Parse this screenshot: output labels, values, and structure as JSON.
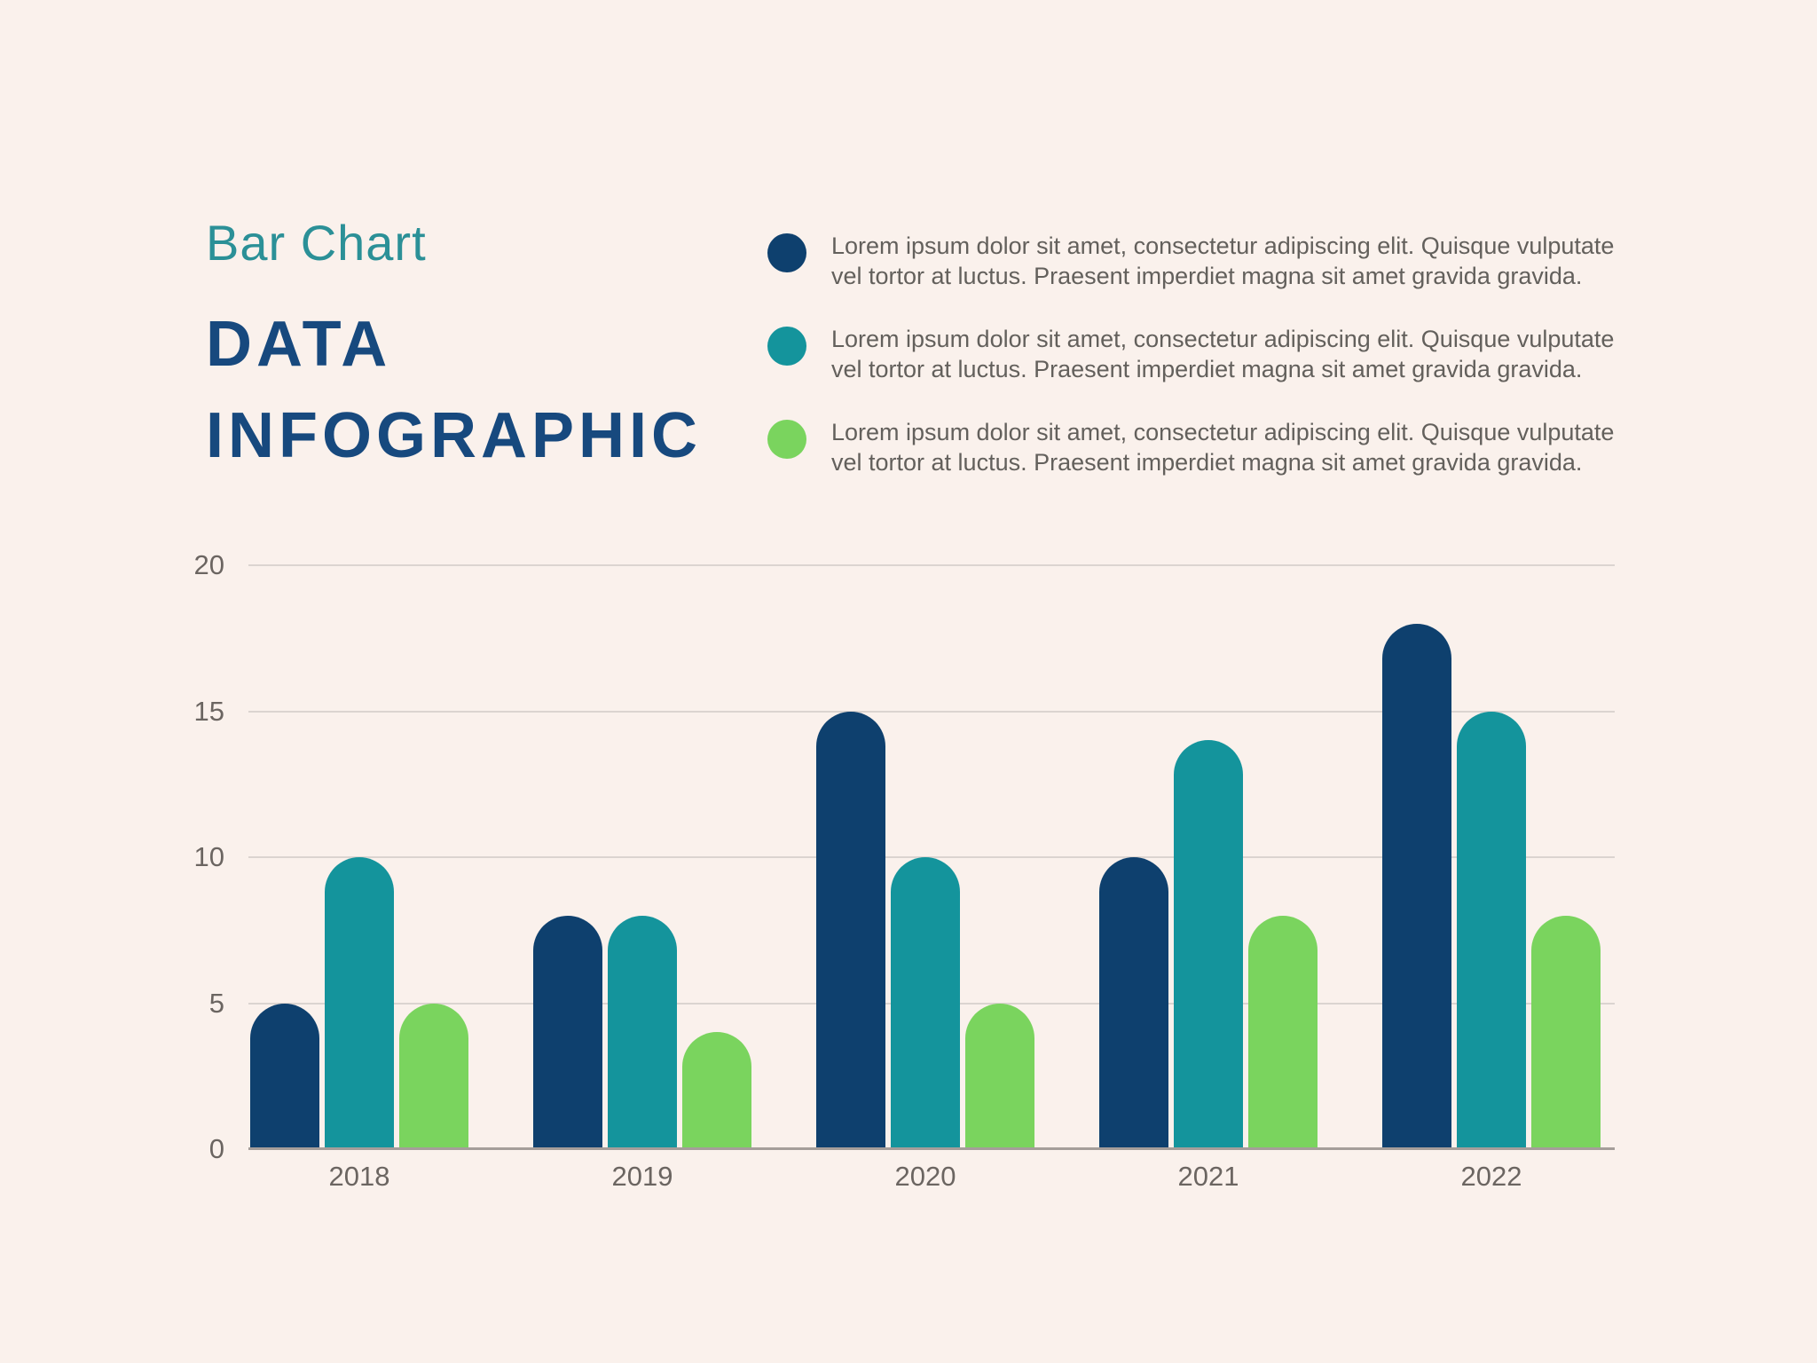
{
  "page": {
    "background": "#faf1ec"
  },
  "title": {
    "subtitle": "Bar Chart",
    "subtitle_color": "#2b9097",
    "line1": "DATA",
    "line2": "INFOGRAPHIC",
    "title_color": "#17497e"
  },
  "legend": {
    "text_color": "#63605c",
    "items": [
      {
        "swatch": "navy-circle",
        "color": "#0e406e",
        "lines": [
          "Lorem ipsum dolor sit amet, consectetur adipiscing elit. Quisque vulputate",
          "vel tortor at luctus. Praesent imperdiet magna sit amet gravida gravida."
        ]
      },
      {
        "swatch": "teal-circle",
        "color": "#14949c",
        "lines": [
          "Lorem ipsum dolor sit amet, consectetur adipiscing elit. Quisque vulputate",
          "vel tortor at luctus. Praesent imperdiet magna sit amet gravida gravida."
        ]
      },
      {
        "swatch": "green-circle",
        "color": "#7ad45e",
        "lines": [
          "Lorem ipsum dolor sit amet, consectetur adipiscing elit. Quisque vulputate",
          "vel tortor at luctus. Praesent imperdiet magna sit amet gravida gravida."
        ]
      }
    ]
  },
  "chart_data": {
    "type": "bar",
    "categories": [
      "2018",
      "2019",
      "2020",
      "2021",
      "2022"
    ],
    "series": [
      {
        "name": "navy",
        "color": "#0e406e",
        "values": [
          5,
          8,
          15,
          10,
          18
        ]
      },
      {
        "name": "teal",
        "color": "#14949c",
        "values": [
          10,
          8,
          10,
          14,
          15
        ]
      },
      {
        "name": "green",
        "color": "#7ad45e",
        "values": [
          5,
          4,
          5,
          8,
          8
        ]
      }
    ],
    "title": "DATA INFOGRAPHIC",
    "xlabel": "",
    "ylabel": "",
    "ylim": [
      0,
      20
    ],
    "yticks": [
      0,
      5,
      10,
      15,
      20
    ],
    "grid": true,
    "legend_position": "top-right-text-blocks",
    "gridline_color": "#dbd4d0",
    "baseline_color": "#a59e9a",
    "tick_label_color": "#6b6561"
  }
}
